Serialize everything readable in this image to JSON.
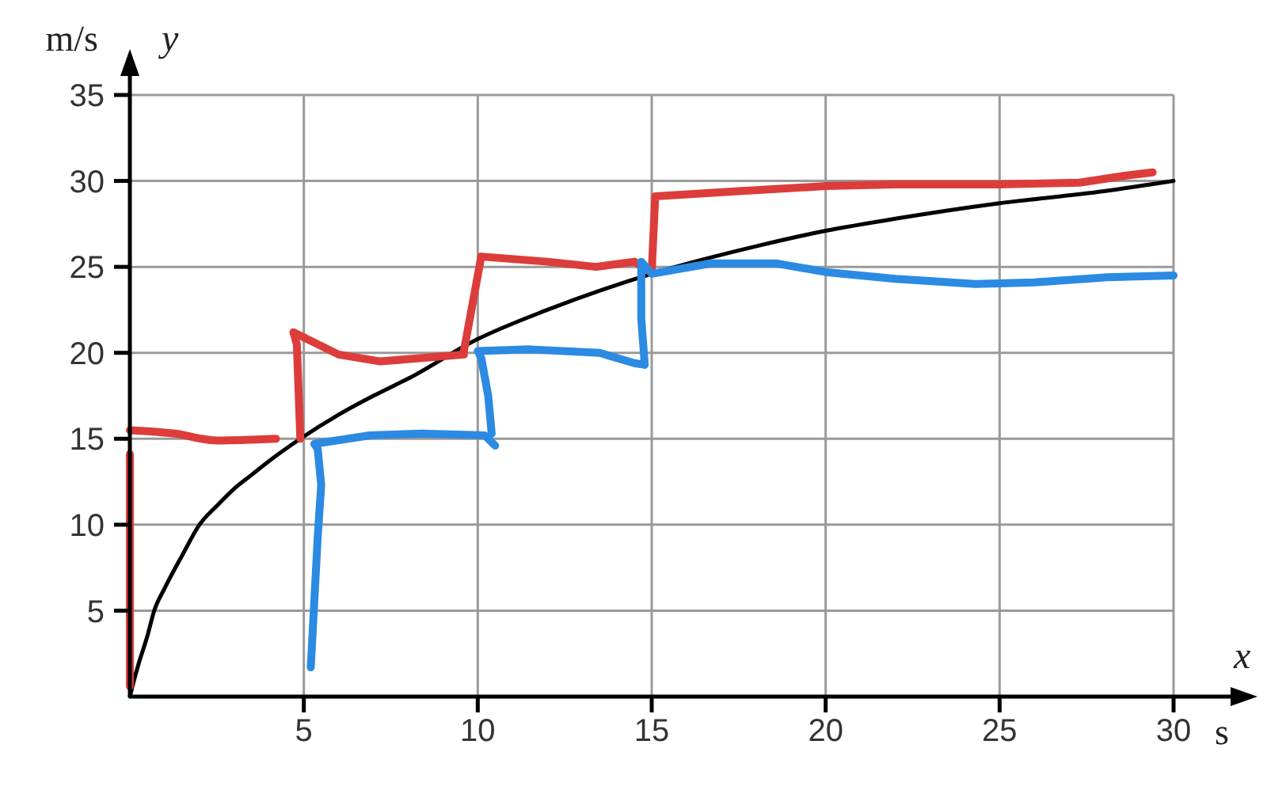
{
  "chart_data": {
    "type": "line",
    "xlabel": "x",
    "ylabel": "y",
    "annotations": [
      "m/s",
      "s"
    ],
    "xlim": [
      0,
      30
    ],
    "ylim": [
      0,
      35
    ],
    "xticks": [
      5,
      10,
      15,
      20,
      25,
      30
    ],
    "yticks": [
      5,
      10,
      15,
      20,
      25,
      30,
      35
    ],
    "grid": true,
    "line_style": "solid",
    "series": [
      {
        "color": "#000000",
        "x": [
          0,
          0.1,
          0.25,
          0.5,
          0.7,
          1,
          1.5,
          2,
          2.5,
          3,
          3.5,
          4,
          4.9,
          6,
          7,
          8,
          10,
          12,
          15,
          18,
          20,
          22,
          25,
          28,
          30
        ],
        "values": [
          0,
          0.8,
          1.9,
          3.5,
          5,
          6.3,
          8.2,
          10,
          11.1,
          12.1,
          12.9,
          13.7,
          15,
          16.4,
          17.5,
          18.5,
          20.8,
          22.5,
          24.6,
          26.2,
          27.1,
          27.8,
          28.7,
          29.4,
          30
        ]
      },
      {
        "color": "#dc3d3a",
        "x": [
          0,
          0
        ],
        "values": [
          0.6,
          14.1
        ]
      },
      {
        "color": "#dc3d3a",
        "x": [
          0,
          1.3,
          2.5,
          4.2
        ],
        "values": [
          15.5,
          15.3,
          14.9,
          15
        ]
      },
      {
        "color": "#dc3d3a",
        "x": [
          4.9,
          4.8,
          4.7,
          6,
          7.2,
          8.4,
          9.6,
          9.6,
          10.1,
          12,
          13.4,
          14.5,
          15,
          15.1,
          17.5,
          20,
          22,
          25,
          27.3,
          28.6,
          29.4
        ],
        "values": [
          15,
          20.5,
          21.2,
          19.9,
          19.5,
          19.7,
          19.9,
          20.1,
          25.6,
          25.3,
          25,
          25.3,
          24.7,
          29.1,
          29.4,
          29.7,
          29.8,
          29.8,
          29.9,
          30.3,
          30.5
        ]
      },
      {
        "color": "#2b8ae2",
        "x": [
          5.2,
          5.4,
          5.5,
          5.4,
          5.3,
          6.9,
          8.4,
          10.2,
          10.5
        ],
        "values": [
          1.7,
          9.3,
          12.3,
          14.4,
          14.7,
          15.2,
          15.3,
          15.2,
          14.6
        ]
      },
      {
        "color": "#2b8ae2",
        "x": [
          10.4,
          10.3,
          10.1,
          10,
          11.5,
          13.5,
          14.5,
          14.8,
          14.7,
          14.7,
          15,
          16.7,
          18.6,
          20,
          22,
          24.3,
          26,
          28.1,
          30
        ],
        "values": [
          15.3,
          17.5,
          19.7,
          20.1,
          20.2,
          20,
          19.4,
          19.3,
          22,
          25.3,
          24.6,
          25.2,
          25.2,
          24.7,
          24.3,
          24,
          24.1,
          24.4,
          24.5
        ]
      }
    ]
  }
}
